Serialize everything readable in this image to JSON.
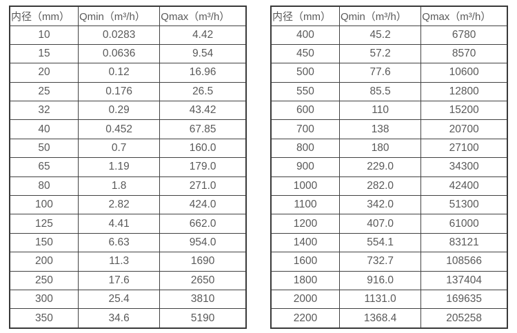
{
  "colors": {
    "border": "#404040",
    "outer_border": "#383838",
    "text": "#595959",
    "background": "#ffffff"
  },
  "tables": [
    {
      "name": "flow-rate-table-small-diameters",
      "headers": [
        "内径（mm）",
        "Qmin（m³/h）",
        "Qmax（m³/h）"
      ],
      "rows": [
        [
          "10",
          "0.0283",
          "4.42"
        ],
        [
          "15",
          "0.0636",
          "9.54"
        ],
        [
          "20",
          "0.12",
          "16.96"
        ],
        [
          "25",
          "0.176",
          "26.5"
        ],
        [
          "32",
          "0.29",
          "43.42"
        ],
        [
          "40",
          "0.452",
          "67.85"
        ],
        [
          "50",
          "0.7",
          "160.0"
        ],
        [
          "65",
          "1.19",
          "179.0"
        ],
        [
          "80",
          "1.8",
          "271.0"
        ],
        [
          "100",
          "2.82",
          "424.0"
        ],
        [
          "125",
          "4.41",
          "662.0"
        ],
        [
          "150",
          "6.63",
          "954.0"
        ],
        [
          "200",
          "11.3",
          "1690"
        ],
        [
          "250",
          "17.6",
          "2650"
        ],
        [
          "300",
          "25.4",
          "3810"
        ],
        [
          "350",
          "34.6",
          "5190"
        ]
      ]
    },
    {
      "name": "flow-rate-table-large-diameters",
      "headers": [
        "内径（mm）",
        "Qmin（m³/h）",
        "Qmax（m³/h）"
      ],
      "rows": [
        [
          "400",
          "45.2",
          "6780"
        ],
        [
          "450",
          "57.2",
          "8570"
        ],
        [
          "500",
          "77.6",
          "10600"
        ],
        [
          "550",
          "85.5",
          "12800"
        ],
        [
          "600",
          "110",
          "15200"
        ],
        [
          "700",
          "138",
          "20700"
        ],
        [
          "800",
          "180",
          "27100"
        ],
        [
          "900",
          "229.0",
          "34300"
        ],
        [
          "1000",
          "282.0",
          "42400"
        ],
        [
          "1100",
          "342.0",
          "51300"
        ],
        [
          "1200",
          "407.0",
          "61000"
        ],
        [
          "1400",
          "554.1",
          "83121"
        ],
        [
          "1600",
          "732.7",
          "108566"
        ],
        [
          "1800",
          "916.0",
          "137404"
        ],
        [
          "2000",
          "1131.0",
          "169635"
        ],
        [
          "2200",
          "1368.4",
          "205258"
        ]
      ]
    }
  ]
}
